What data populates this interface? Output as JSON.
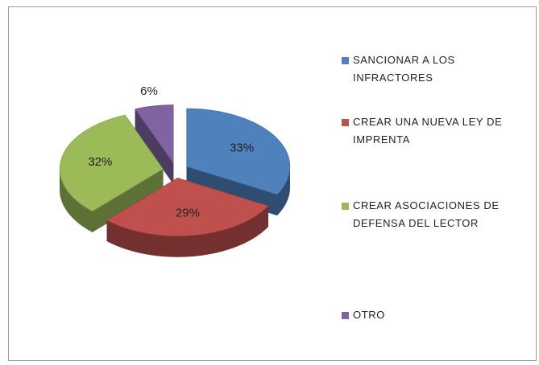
{
  "chart_data": {
    "type": "pie",
    "categories": [
      "SANCIONAR A LOS INFRACTORES",
      "CREAR UNA NUEVA LEY DE IMPRENTA",
      "CREAR ASOCIACIONES  DE DEFENSA DEL LECTOR",
      "OTRO"
    ],
    "values": [
      33,
      29,
      32,
      6
    ],
    "value_labels": [
      "33%",
      "29%",
      "32%",
      "6%"
    ],
    "colors": [
      "#4f81bd",
      "#c0504d",
      "#9bbb59",
      "#8064a2"
    ],
    "legend": "right"
  }
}
